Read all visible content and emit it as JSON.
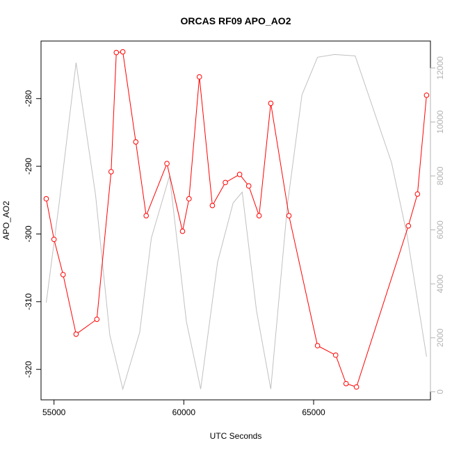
{
  "chart_data": {
    "type": "line",
    "title": "ORCAS RF09 APO_AO2",
    "xlabel": "UTC Seconds",
    "ylabel": "APO_AO2",
    "y2label": "",
    "xlim": [
      54500,
      69500
    ],
    "ylim": [
      -324.5,
      -271.5
    ],
    "y2lim": [
      -300,
      13000
    ],
    "x_ticks": [
      55000,
      60000,
      65000
    ],
    "y_ticks": [
      -320,
      -310,
      -300,
      -290,
      -280
    ],
    "y2_ticks": [
      0,
      2000,
      4000,
      6000,
      8000,
      10000,
      12000
    ],
    "grid": false,
    "series": [
      {
        "color": "#ff0000",
        "marker": "open-circle",
        "axis": "left",
        "x": [
          54700,
          55000,
          55350,
          55850,
          56650,
          57200,
          57400,
          57650,
          58150,
          58550,
          59350,
          59950,
          60200,
          60600,
          61100,
          61600,
          62150,
          62500,
          62900,
          63350,
          64050,
          65150,
          65850,
          66250,
          66650,
          68650,
          69000,
          69350
        ],
        "y": [
          -294.8,
          -300.8,
          -306.0,
          -314.8,
          -312.6,
          -290.8,
          -273.2,
          -273.1,
          -286.4,
          -297.3,
          -289.6,
          -299.6,
          -294.8,
          -276.8,
          -295.8,
          -292.4,
          -291.2,
          -292.9,
          -297.3,
          -280.7,
          -297.3,
          -316.5,
          -317.9,
          -322.1,
          -322.6,
          -298.8,
          -294.1,
          -279.5
        ]
      },
      {
        "color": "#c0c0c0",
        "marker": "none",
        "axis": "right",
        "x": [
          54700,
          55200,
          55850,
          56600,
          57150,
          57650,
          58300,
          58750,
          59450,
          60100,
          60650,
          61300,
          61900,
          62250,
          62800,
          63350,
          64000,
          64550,
          65150,
          65800,
          66600,
          68000,
          68600,
          69350
        ],
        "y": [
          3300,
          7000,
          12200,
          7300,
          2100,
          100,
          2200,
          5700,
          8000,
          2600,
          100,
          4800,
          7000,
          7400,
          3000,
          100,
          7000,
          11000,
          12400,
          12500,
          12450,
          8500,
          5800,
          1300
        ]
      }
    ]
  }
}
